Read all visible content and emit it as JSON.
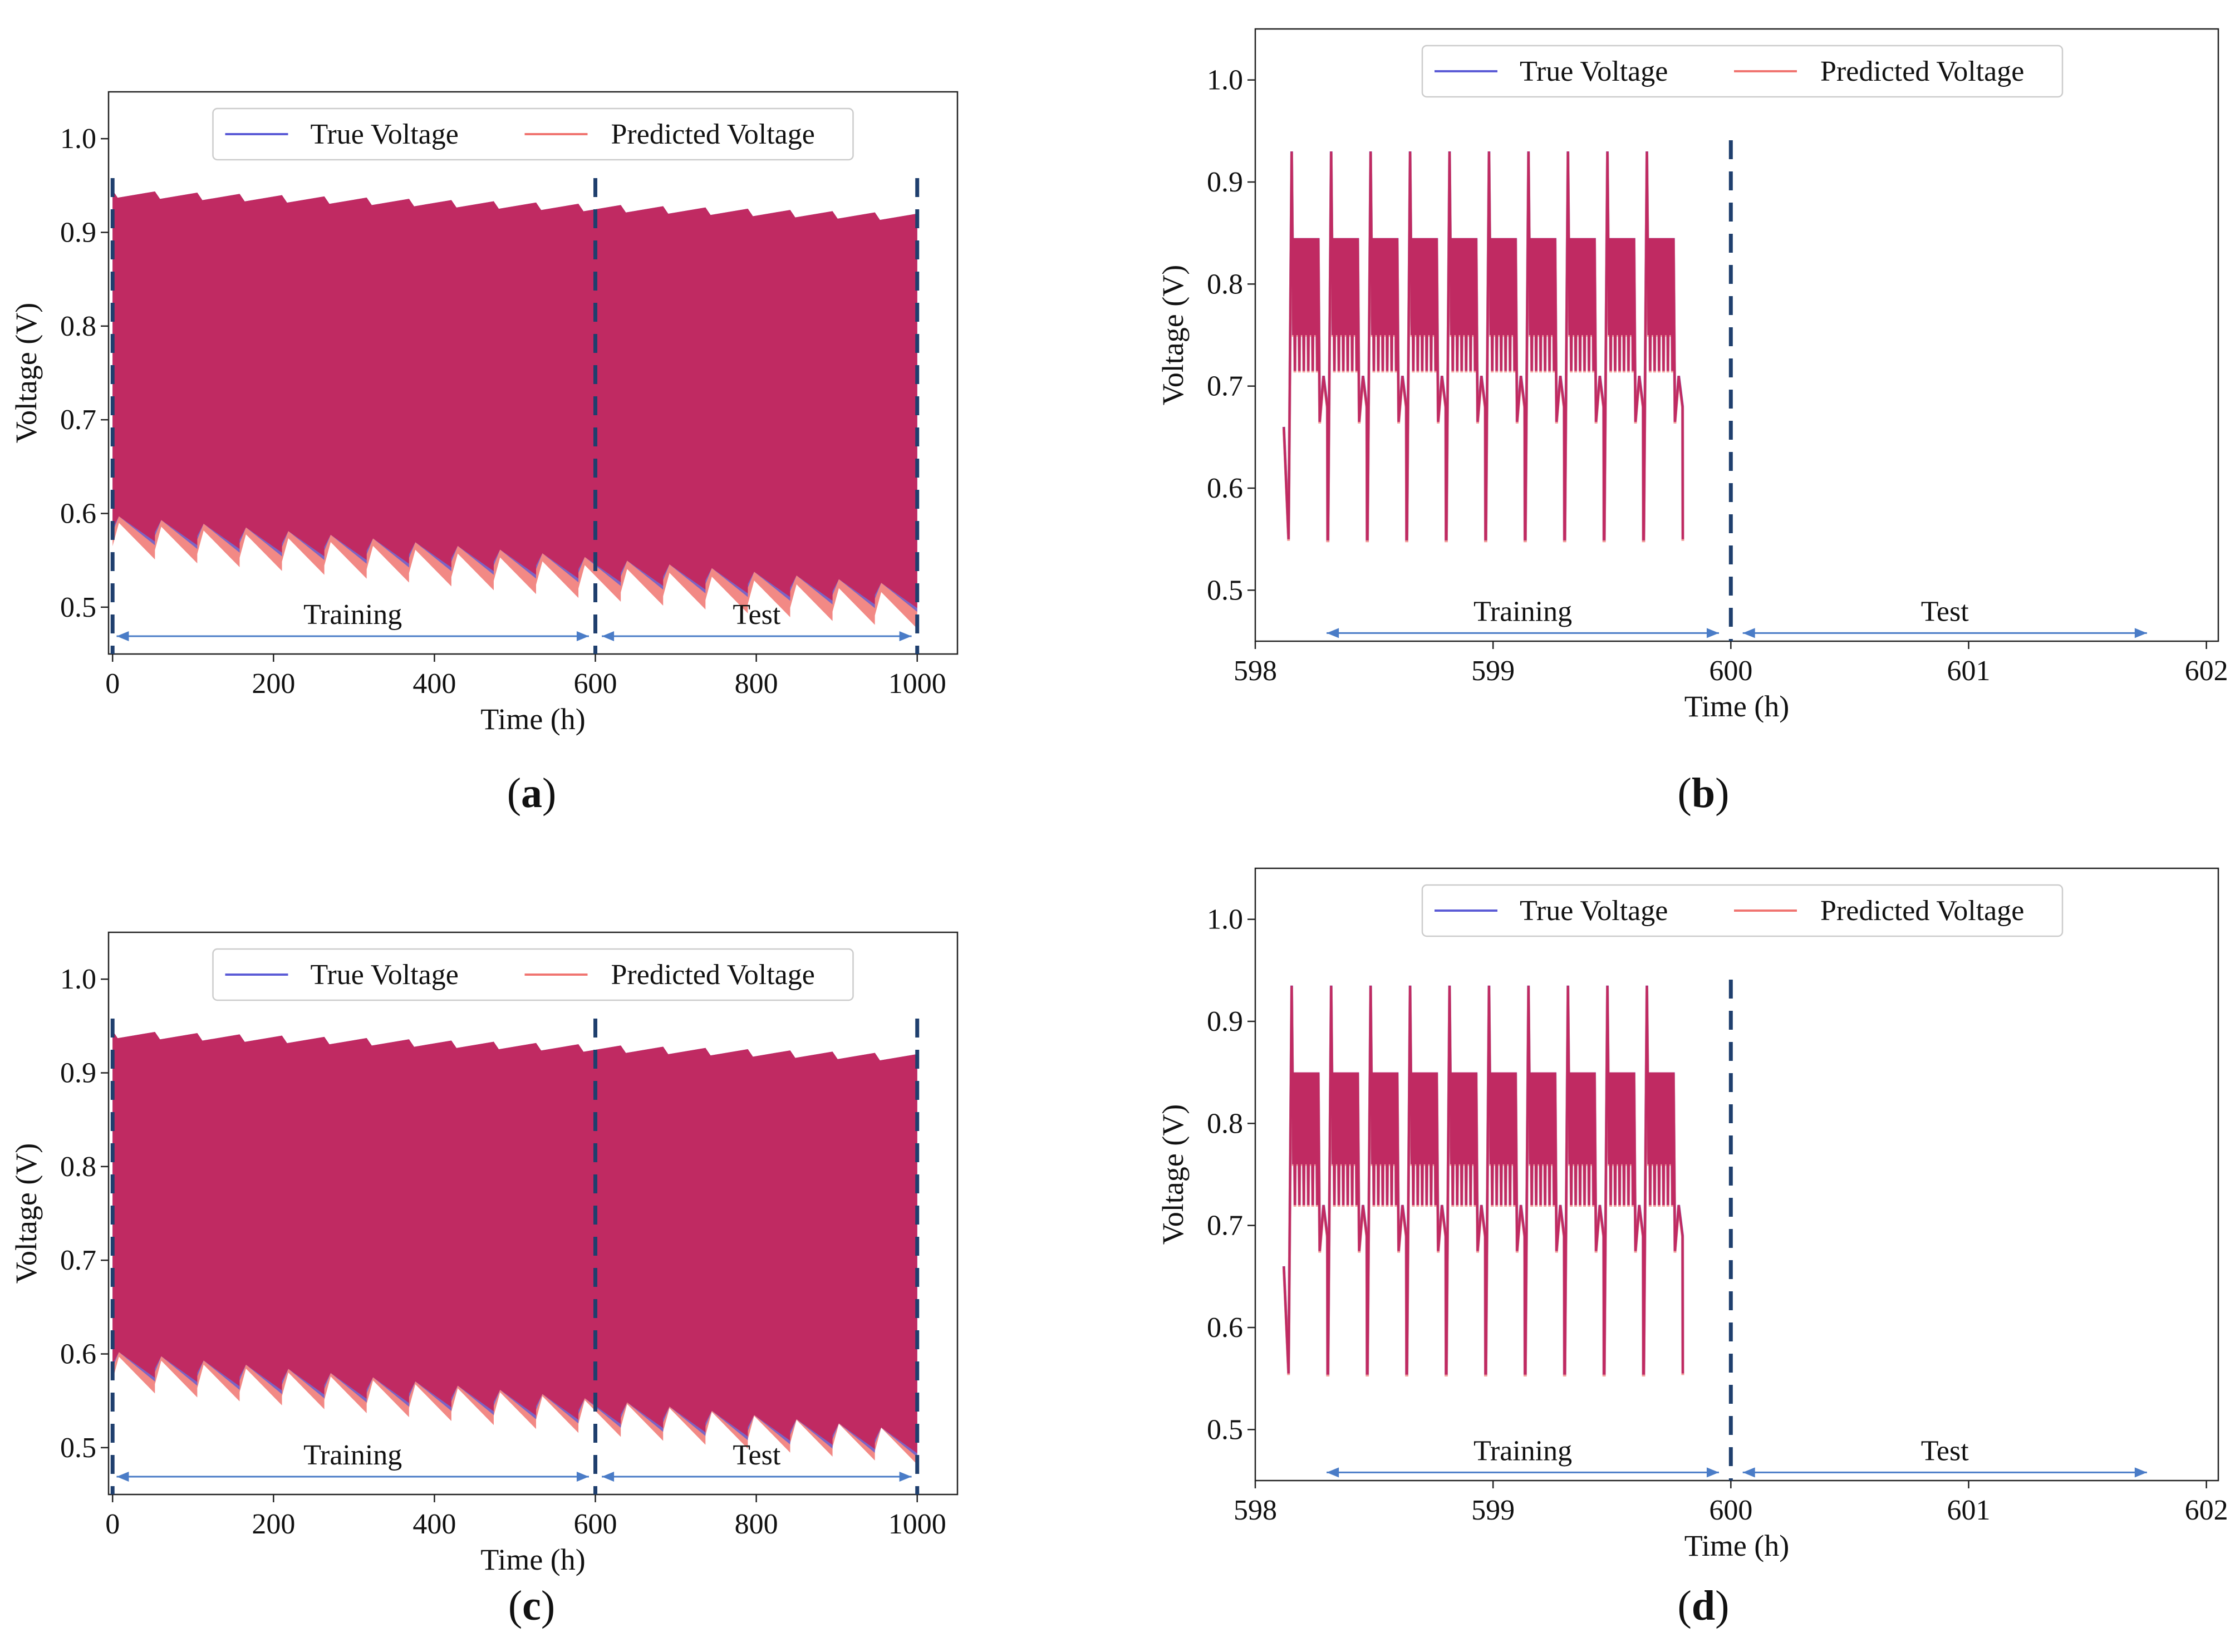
{
  "chart_data": [
    {
      "panel": "a",
      "type": "line",
      "caption": "a",
      "xlabel": "Time (h)",
      "ylabel": "Voltage (V)",
      "xlim": [
        -5,
        1050
      ],
      "ylim": [
        0.45,
        1.05
      ],
      "xticks": [
        0,
        200,
        400,
        600,
        800,
        1000
      ],
      "xtick_labels": [
        "0",
        "200",
        "400",
        "600",
        "800",
        "1000"
      ],
      "yticks": [
        0.5,
        0.6,
        0.7,
        0.8,
        0.9,
        1.0
      ],
      "ytick_labels": [
        "0.5",
        "0.6",
        "0.7",
        "0.8",
        "0.9",
        "1.0"
      ],
      "legend": [
        "True Voltage",
        "Predicted Voltage"
      ],
      "legend_position": "top-center",
      "region_labels": [
        "Training",
        "Test"
      ],
      "split_lines": [
        0,
        600,
        1000
      ],
      "series": [
        {
          "name": "True Voltage",
          "color": "#5b5bd6",
          "upper_start": 0.945,
          "upper_end": 0.92,
          "lower_start": 0.585,
          "lower_end": 0.51
        },
        {
          "name": "Predicted Voltage",
          "color": "#f07470",
          "upper_start": 0.945,
          "upper_end": 0.92,
          "lower_start": 0.578,
          "lower_end": 0.5
        }
      ],
      "fill_color": "#c02a62"
    },
    {
      "panel": "b",
      "type": "line",
      "caption": "b",
      "xlabel": "Time (h)",
      "ylabel": "Voltage (V)",
      "xlim": [
        598.0,
        602.05
      ],
      "ylim": [
        0.45,
        1.05
      ],
      "xticks": [
        598,
        599,
        600,
        601,
        602
      ],
      "xtick_labels": [
        "598",
        "599",
        "600",
        "601",
        "602"
      ],
      "yticks": [
        0.5,
        0.6,
        0.7,
        0.8,
        0.9,
        1.0
      ],
      "ytick_labels": [
        "0.5",
        "0.6",
        "0.7",
        "0.8",
        "0.9",
        "1.0"
      ],
      "legend": [
        "True Voltage",
        "Predicted Voltage"
      ],
      "legend_position": "top-center",
      "region_labels": [
        "Training",
        "Test"
      ],
      "split_lines": [
        600
      ],
      "cycles": {
        "start": 598.15,
        "period": 0.166,
        "count": 10,
        "peak": 0.93,
        "plateau": 0.845,
        "dip": 0.75,
        "floor": 0.715,
        "recovery": 0.71,
        "minimum": 0.55
      },
      "series": [
        {
          "name": "True Voltage",
          "color": "#5b5bd6"
        },
        {
          "name": "Predicted Voltage",
          "color": "#f07470"
        }
      ],
      "line_color": "#c02a62"
    },
    {
      "panel": "c",
      "type": "line",
      "caption": "c",
      "xlabel": "Time (h)",
      "ylabel": "Voltage (V)",
      "xlim": [
        -5,
        1050
      ],
      "ylim": [
        0.45,
        1.05
      ],
      "xticks": [
        0,
        200,
        400,
        600,
        800,
        1000
      ],
      "xtick_labels": [
        "0",
        "200",
        "400",
        "600",
        "800",
        "1000"
      ],
      "yticks": [
        0.5,
        0.6,
        0.7,
        0.8,
        0.9,
        1.0
      ],
      "ytick_labels": [
        "0.5",
        "0.6",
        "0.7",
        "0.8",
        "0.9",
        "1.0"
      ],
      "legend": [
        "True Voltage",
        "Predicted Voltage"
      ],
      "legend_position": "top-center",
      "region_labels": [
        "Training",
        "Test"
      ],
      "split_lines": [
        0,
        600,
        1000
      ],
      "series": [
        {
          "name": "True Voltage",
          "color": "#5b5bd6",
          "upper_start": 0.945,
          "upper_end": 0.92,
          "lower_start": 0.59,
          "lower_end": 0.505
        },
        {
          "name": "Predicted Voltage",
          "color": "#f07470",
          "upper_start": 0.945,
          "upper_end": 0.92,
          "lower_start": 0.585,
          "lower_end": 0.505
        }
      ],
      "fill_color": "#c02a62"
    },
    {
      "panel": "d",
      "type": "line",
      "caption": "d",
      "xlabel": "Time (h)",
      "ylabel": "Voltage (V)",
      "xlim": [
        598.0,
        602.05
      ],
      "ylim": [
        0.45,
        1.05
      ],
      "xticks": [
        598,
        599,
        600,
        601,
        602
      ],
      "xtick_labels": [
        "598",
        "599",
        "600",
        "601",
        "602"
      ],
      "yticks": [
        0.5,
        0.6,
        0.7,
        0.8,
        0.9,
        1.0
      ],
      "ytick_labels": [
        "0.5",
        "0.6",
        "0.7",
        "0.8",
        "0.9",
        "1.0"
      ],
      "legend": [
        "True Voltage",
        "Predicted Voltage"
      ],
      "legend_position": "top-center",
      "region_labels": [
        "Training",
        "Test"
      ],
      "split_lines": [
        600
      ],
      "cycles": {
        "start": 598.15,
        "period": 0.166,
        "count": 10,
        "peak": 0.935,
        "plateau": 0.85,
        "dip": 0.76,
        "floor": 0.72,
        "recovery": 0.72,
        "minimum": 0.555
      },
      "series": [
        {
          "name": "True Voltage",
          "color": "#5b5bd6"
        },
        {
          "name": "Predicted Voltage",
          "color": "#f07470"
        }
      ],
      "line_color": "#c02a62"
    }
  ],
  "colors": {
    "split_line": "#1f3f6e",
    "arrow": "#4a7cc7",
    "axis": "#222222"
  }
}
